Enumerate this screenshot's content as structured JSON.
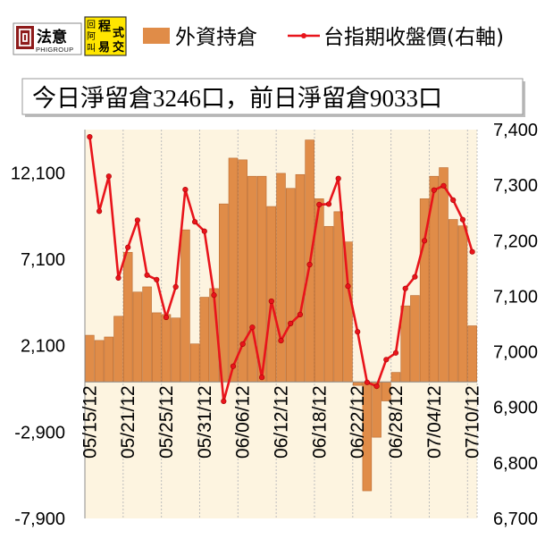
{
  "logos": {
    "phigroup": {
      "name": "法意",
      "sub": "PHIGROUP"
    },
    "program_trading": {
      "side": [
        "回",
        "阿",
        "叫"
      ],
      "main": [
        "程",
        "式",
        "交",
        "易"
      ]
    }
  },
  "summary": "今日淨留倉3246口，前日淨留倉9033口",
  "colors": {
    "bars": "#E08C48",
    "bar_edge": "#B96A30",
    "line": "#E8141B",
    "line_point_edge": "#A30000",
    "plot_background": "#FDF4E0",
    "logo_emblem": "#8E1B1B",
    "logo_yellow": "#FFE600",
    "logo_red": "#C00000"
  },
  "chart_data": {
    "type": "bar",
    "categories": [
      "05/15/12",
      "",
      "",
      "",
      "05/21/12",
      "",
      "",
      "",
      "05/25/12",
      "",
      "",
      "",
      "05/31/12",
      "",
      "",
      "",
      "06/06/12",
      "",
      "",
      "",
      "06/12/12",
      "",
      "",
      "",
      "06/18/12",
      "",
      "",
      "",
      "06/22/12",
      "",
      "",
      "",
      "06/28/12",
      "",
      "",
      "",
      "07/04/12",
      "",
      "",
      "",
      "07/10/12"
    ],
    "series": [
      {
        "name": "外資持倉",
        "type": "bar",
        "axis": "left",
        "values": [
          2700,
          2400,
          2600,
          3800,
          7500,
          5200,
          5500,
          4000,
          3900,
          3700,
          8800,
          2200,
          4900,
          5400,
          10300,
          12950,
          12850,
          11900,
          11900,
          10150,
          12070,
          11200,
          12000,
          14000,
          10600,
          9000,
          9850,
          8100,
          -200,
          -6300,
          -3200,
          -1100,
          550,
          4400,
          5000,
          10600,
          11900,
          12400,
          9400,
          9033,
          3246
        ]
      },
      {
        "name": "台指期收盤價(右軸)",
        "type": "line",
        "axis": "right",
        "values": [
          7387,
          7253,
          7316,
          7133,
          7188,
          7237,
          7138,
          7130,
          7062,
          7117,
          7292,
          7234,
          7217,
          7102,
          6911,
          6974,
          7014,
          7044,
          6954,
          7091,
          7020,
          7051,
          7067,
          7157,
          7265,
          7266,
          7312,
          7118,
          7036,
          6945,
          6938,
          6986,
          6998,
          7114,
          7135,
          7200,
          7291,
          7299,
          7273,
          7238,
          7180
        ]
      }
    ],
    "y_left": {
      "ylim": [
        -7900,
        14600
      ],
      "ticks": [
        -7900,
        -2900,
        2100,
        7100,
        12100
      ]
    },
    "y_right": {
      "ylim": [
        6700,
        7400
      ],
      "ticks": [
        6700,
        6800,
        6900,
        7000,
        7100,
        7200,
        7300,
        7400
      ]
    },
    "legend": "top",
    "grid": {
      "vertical": true,
      "horizontal": false
    }
  }
}
